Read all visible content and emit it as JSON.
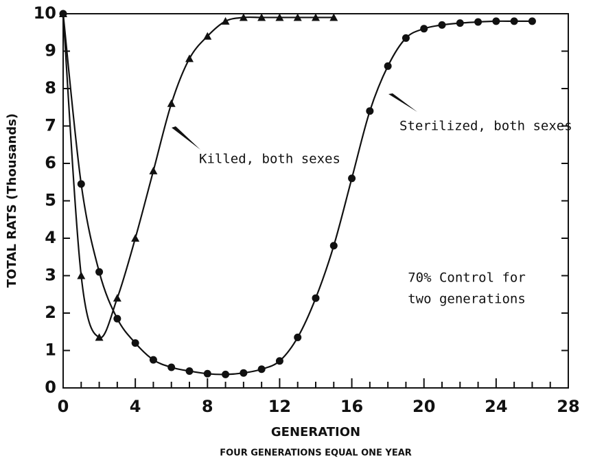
{
  "chart_data": {
    "type": "line",
    "xlabel": "GENERATION",
    "ylabel": "TOTAL RATS (Thousands)",
    "subtitle": "FOUR GENERATIONS EQUAL ONE YEAR",
    "xlim": [
      0,
      28
    ],
    "ylim": [
      0,
      10
    ],
    "xticks": [
      0,
      4,
      8,
      12,
      16,
      20,
      24,
      28
    ],
    "xminorticks": [
      1,
      2,
      3,
      5,
      6,
      7,
      9,
      10,
      11,
      13,
      14,
      15,
      17,
      18,
      19,
      21,
      22,
      23,
      25,
      26,
      27
    ],
    "yticks": [
      0,
      1,
      2,
      3,
      4,
      5,
      6,
      7,
      8,
      9,
      10
    ],
    "grid": false,
    "series": [
      {
        "name": "Killed, both sexes",
        "color": "#111111",
        "marker": "triangle",
        "x": [
          0,
          1,
          2,
          3,
          4,
          5,
          6,
          7,
          8,
          9,
          10,
          11,
          12,
          13,
          14,
          15
        ],
        "values": [
          10,
          3.0,
          1.35,
          2.4,
          4.0,
          5.8,
          7.6,
          8.8,
          9.4,
          9.8,
          9.9,
          9.9,
          9.9,
          9.9,
          9.9,
          9.9
        ]
      },
      {
        "name": "Sterilized, both sexes",
        "color": "#111111",
        "marker": "circle",
        "x": [
          0,
          1,
          2,
          3,
          4,
          5,
          6,
          7,
          8,
          9,
          10,
          11,
          12,
          13,
          14,
          15,
          16,
          17,
          18,
          19,
          20,
          21,
          22,
          23,
          24,
          25,
          26
        ],
        "values": [
          10,
          5.45,
          3.1,
          1.85,
          1.2,
          0.75,
          0.55,
          0.45,
          0.38,
          0.36,
          0.4,
          0.5,
          0.72,
          1.35,
          2.4,
          3.8,
          5.6,
          7.4,
          8.6,
          9.35,
          9.6,
          9.7,
          9.75,
          9.78,
          9.8,
          9.8,
          9.8
        ]
      }
    ],
    "annotations": [
      {
        "text": "70% Control for"
      },
      {
        "text": "two generations"
      }
    ]
  }
}
